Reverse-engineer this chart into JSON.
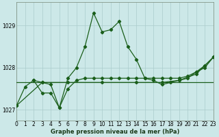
{
  "xlabel": "Graphe pression niveau de la mer (hPa)",
  "bg_color": "#cce8e8",
  "grid_color": "#aacccc",
  "line_color": "#1a5e1a",
  "xmin": 0,
  "xmax": 23,
  "ymin": 1026.75,
  "ymax": 1029.55,
  "yticks": [
    1027,
    1028,
    1029
  ],
  "xticks": [
    0,
    1,
    2,
    3,
    4,
    5,
    6,
    7,
    8,
    9,
    10,
    11,
    12,
    13,
    14,
    15,
    16,
    17,
    18,
    19,
    20,
    21,
    22,
    23
  ],
  "series1": {
    "x": [
      0,
      1,
      2,
      3,
      4,
      5,
      6,
      7,
      8,
      9,
      10,
      11,
      12,
      13,
      14,
      15,
      16,
      17,
      18,
      19,
      20,
      21,
      22,
      23
    ],
    "y": [
      1027.1,
      1027.55,
      1027.7,
      1027.65,
      1027.6,
      1027.05,
      1027.75,
      1028.0,
      1028.5,
      1029.3,
      1028.85,
      1028.9,
      1029.1,
      1028.5,
      1028.2,
      1027.75,
      1027.7,
      1027.6,
      1027.65,
      1027.7,
      1027.75,
      1027.9,
      1028.05,
      1028.25
    ]
  },
  "series2": {
    "x": [
      0,
      1,
      2,
      3,
      4,
      5,
      6,
      7,
      8,
      9,
      10,
      11,
      12,
      13,
      14,
      15,
      16,
      17,
      18,
      19,
      20,
      21,
      22,
      23
    ],
    "y": [
      1027.65,
      1027.65,
      1027.65,
      1027.65,
      1027.65,
      1027.65,
      1027.65,
      1027.65,
      1027.65,
      1027.65,
      1027.65,
      1027.65,
      1027.65,
      1027.65,
      1027.65,
      1027.65,
      1027.65,
      1027.65,
      1027.65,
      1027.65,
      1027.65,
      1027.65,
      1027.65,
      1027.65
    ]
  },
  "series3": {
    "x": [
      2,
      3,
      4,
      5,
      6,
      7,
      8,
      9,
      10,
      11,
      12,
      13,
      14,
      15,
      16,
      17,
      18,
      19,
      20,
      21,
      22,
      23
    ],
    "y": [
      1027.7,
      1027.4,
      1027.4,
      1027.05,
      1027.5,
      1027.7,
      1027.75,
      1027.75,
      1027.75,
      1027.75,
      1027.75,
      1027.75,
      1027.75,
      1027.75,
      1027.75,
      1027.75,
      1027.75,
      1027.75,
      1027.8,
      1027.9,
      1028.0,
      1028.25
    ]
  },
  "series4": {
    "x": [
      0,
      3,
      6,
      10,
      14,
      17,
      19,
      21,
      22,
      23
    ],
    "y": [
      1027.1,
      1027.65,
      1027.65,
      1027.65,
      1027.65,
      1027.65,
      1027.7,
      1027.85,
      1028.05,
      1028.25
    ]
  }
}
